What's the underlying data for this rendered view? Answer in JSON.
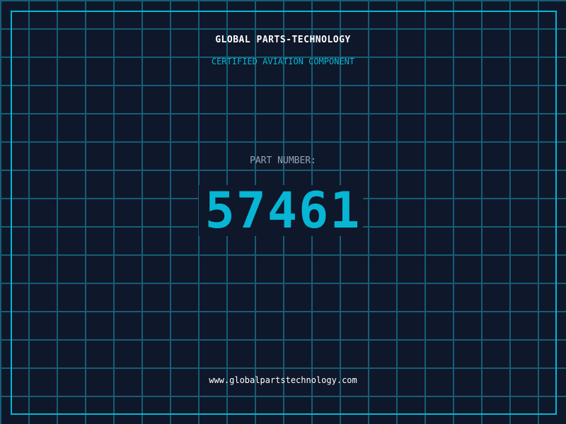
{
  "brand": "GLOBAL PARTS-TECHNOLOGY",
  "subtitle": "CERTIFIED AVIATION COMPONENT",
  "part_label": "PART NUMBER:",
  "part_number": "57461",
  "website": "www.globalpartstechnology.com",
  "colors": {
    "background": "#0f172a",
    "accent": "#06b6d4",
    "grid": "#155e75"
  }
}
